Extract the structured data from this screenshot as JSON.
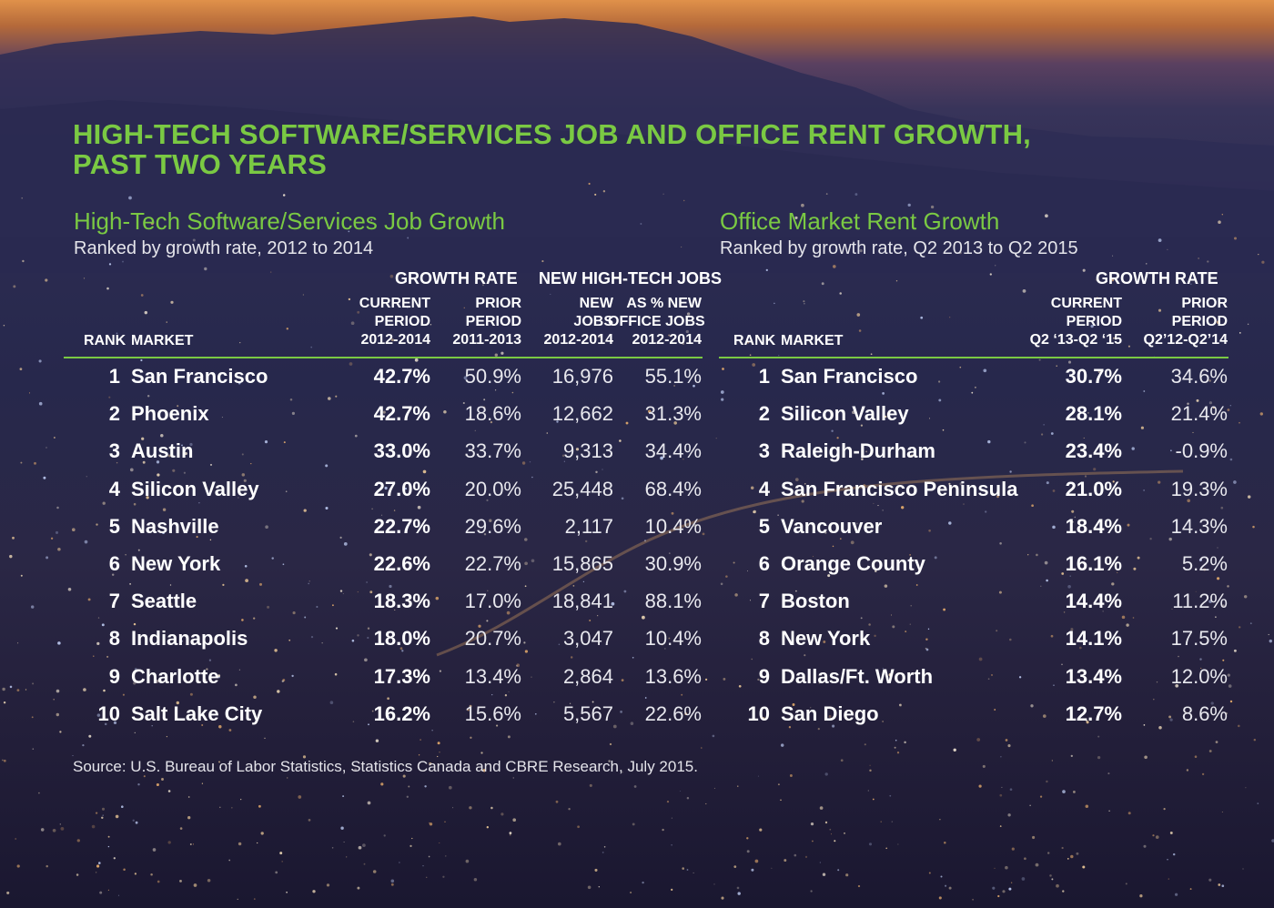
{
  "title_lines": [
    "HIGH-TECH SOFTWARE/SERVICES JOB AND OFFICE RENT GROWTH,",
    "PAST TWO YEARS"
  ],
  "colors": {
    "accent_green": "#7ac943",
    "text": "#ffffff",
    "sky_orange": "#e0914a",
    "night_navy": "#27284c"
  },
  "left_panel": {
    "title": "High-Tech Software/Services Job Growth",
    "subtitle": "Ranked by growth rate, 2012 to 2014",
    "group_headers": {
      "growth_rate": "GROWTH RATE",
      "new_jobs": "NEW HIGH-TECH JOBS"
    },
    "columns": {
      "rank": "RANK",
      "market": "MARKET",
      "current": [
        "CURRENT",
        "PERIOD",
        "2012-2014"
      ],
      "prior": [
        "PRIOR",
        "PERIOD",
        "2011-2013"
      ],
      "new_jobs": [
        "NEW",
        "JOBS",
        "2012-2014"
      ],
      "pct_new": [
        "AS % NEW",
        "OFFICE JOBS",
        "2012-2014"
      ]
    }
  },
  "right_panel": {
    "title": "Office Market Rent Growth",
    "subtitle": "Ranked by growth rate, Q2 2013 to Q2 2015",
    "group_headers": {
      "growth_rate": "GROWTH RATE"
    },
    "columns": {
      "rank": "RANK",
      "market": "MARKET",
      "current": [
        "CURRENT",
        "PERIOD",
        "Q2 ‘13-Q2 ‘15"
      ],
      "prior": [
        "PRIOR",
        "PERIOD",
        "Q2’12-Q2’14"
      ]
    }
  },
  "source": "Source: U.S. Bureau of Labor Statistics, Statistics Canada and CBRE Research, July 2015.",
  "chart_data": [
    {
      "type": "table",
      "title": "High-Tech Software/Services Job Growth",
      "columns": [
        "RANK",
        "MARKET",
        "CURRENT PERIOD 2012-2014",
        "PRIOR PERIOD 2011-2013",
        "NEW JOBS 2012-2014",
        "AS % NEW OFFICE JOBS 2012-2014"
      ],
      "rows": [
        [
          "1",
          "San Francisco",
          "42.7%",
          "50.9%",
          "16,976",
          "55.1%"
        ],
        [
          "2",
          "Phoenix",
          "42.7%",
          "18.6%",
          "12,662",
          "31.3%"
        ],
        [
          "3",
          "Austin",
          "33.0%",
          "33.7%",
          "9,313",
          "34.4%"
        ],
        [
          "4",
          "Silicon Valley",
          "27.0%",
          "20.0%",
          "25,448",
          "68.4%"
        ],
        [
          "5",
          "Nashville",
          "22.7%",
          "29.6%",
          "2,117",
          "10.4%"
        ],
        [
          "6",
          "New York",
          "22.6%",
          "22.7%",
          "15,865",
          "30.9%"
        ],
        [
          "7",
          "Seattle",
          "18.3%",
          "17.0%",
          "18,841",
          "88.1%"
        ],
        [
          "8",
          "Indianapolis",
          "18.0%",
          "20.7%",
          "3,047",
          "10.4%"
        ],
        [
          "9",
          "Charlotte",
          "17.3%",
          "13.4%",
          "2,864",
          "13.6%"
        ],
        [
          "10",
          "Salt Lake City",
          "16.2%",
          "15.6%",
          "5,567",
          "22.6%"
        ]
      ]
    },
    {
      "type": "table",
      "title": "Office Market Rent Growth",
      "columns": [
        "RANK",
        "MARKET",
        "CURRENT PERIOD Q2 ‘13-Q2 ‘15",
        "PRIOR PERIOD Q2’12-Q2’14"
      ],
      "rows": [
        [
          "1",
          "San Francisco",
          "30.7%",
          "34.6%"
        ],
        [
          "2",
          "Silicon Valley",
          "28.1%",
          "21.4%"
        ],
        [
          "3",
          "Raleigh-Durham",
          "23.4%",
          "-0.9%"
        ],
        [
          "4",
          "San Francisco Peninsula",
          "21.0%",
          "19.3%"
        ],
        [
          "5",
          "Vancouver",
          "18.4%",
          "14.3%"
        ],
        [
          "6",
          "Orange County",
          "16.1%",
          "5.2%"
        ],
        [
          "7",
          "Boston",
          "14.4%",
          "11.2%"
        ],
        [
          "8",
          "New York",
          "14.1%",
          "17.5%"
        ],
        [
          "9",
          "Dallas/Ft. Worth",
          "13.4%",
          "12.0%"
        ],
        [
          "10",
          "San Diego",
          "12.7%",
          "8.6%"
        ]
      ]
    }
  ]
}
